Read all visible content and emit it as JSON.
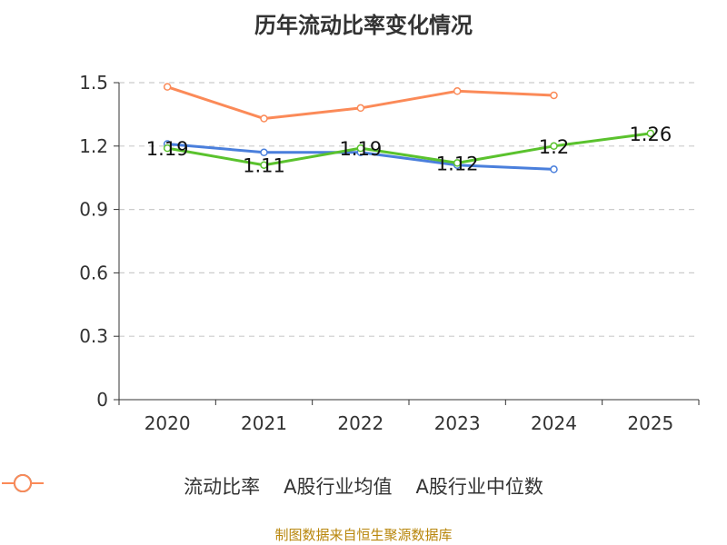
{
  "title": "历年流动比率变化情况",
  "footer": "制图数据来自恒生聚源数据库",
  "colors": {
    "series_0": "#5ac22d",
    "series_1": "#4a7fdc",
    "series_2": "#fb8a58",
    "axis": "#333333",
    "grid": "#cccccc"
  },
  "chart_data": {
    "type": "line",
    "title": "历年流动比率变化情况",
    "xlabel": "",
    "ylabel": "",
    "categories": [
      "2020",
      "2021",
      "2022",
      "2023",
      "2024",
      "2025"
    ],
    "ylim": [
      0,
      1.5
    ],
    "yticks": [
      "0",
      "0.3",
      "0.6",
      "0.9",
      "1.2",
      "1.5"
    ],
    "grid": true,
    "legend_position": "bottom",
    "series": [
      {
        "name": "流动比率",
        "values": [
          1.19,
          1.11,
          1.19,
          1.12,
          1.2,
          1.26
        ],
        "labels": [
          "1.19",
          "1.11",
          "1.19",
          "1.12",
          "1.2",
          "1.26"
        ],
        "show_labels": true
      },
      {
        "name": "A股行业均值",
        "values": [
          1.21,
          1.17,
          1.17,
          1.11,
          1.09,
          null
        ],
        "show_labels": false
      },
      {
        "name": "A股行业中位数",
        "values": [
          1.48,
          1.33,
          1.38,
          1.46,
          1.44,
          null
        ],
        "show_labels": false
      }
    ]
  }
}
